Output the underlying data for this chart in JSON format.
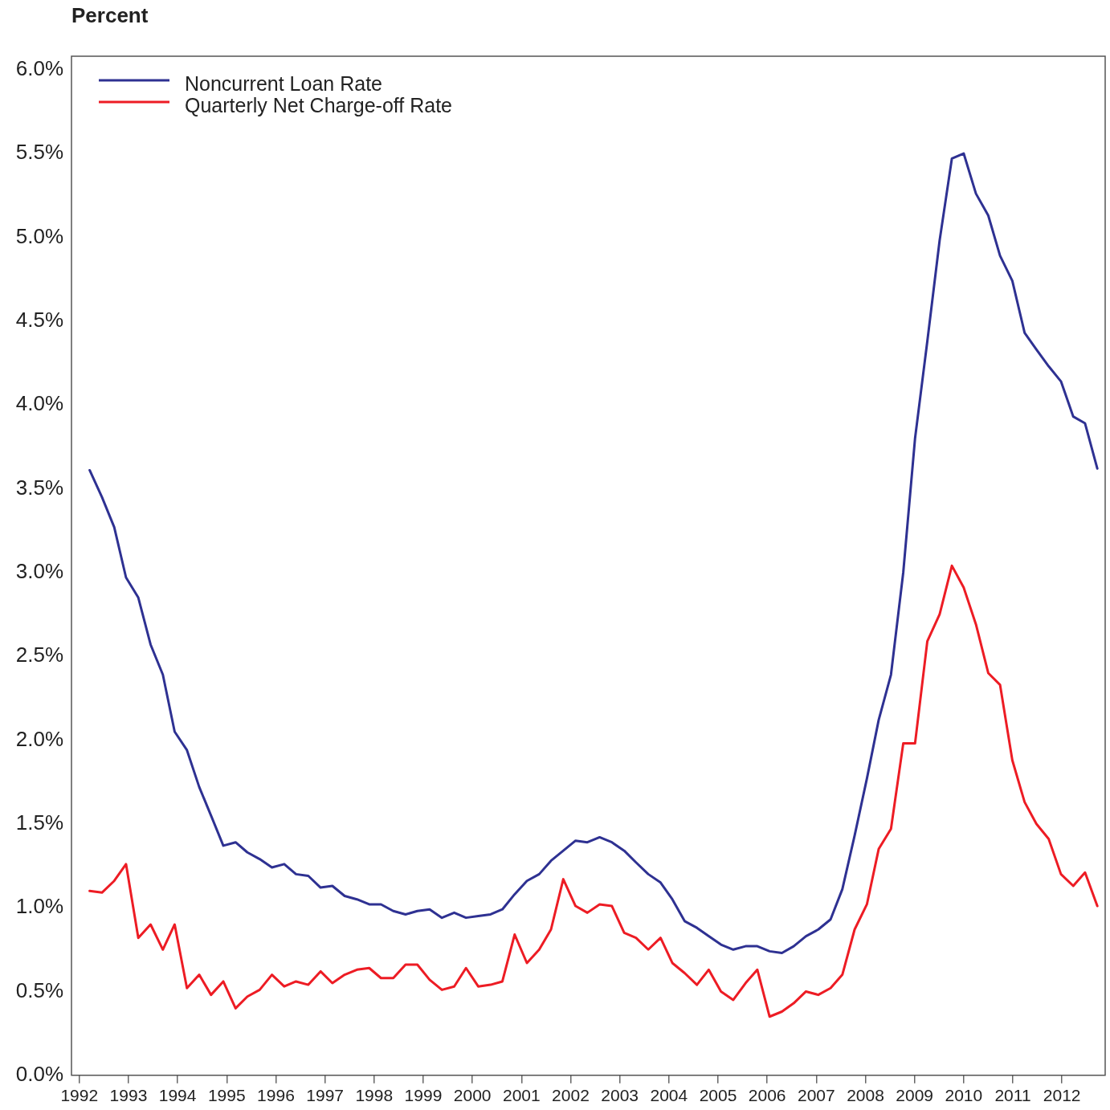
{
  "chart_data": {
    "type": "line",
    "ylabel": "Percent",
    "x": [
      1992.21,
      1992.46,
      1992.71,
      1992.95,
      1993.2,
      1993.45,
      1993.7,
      1993.94,
      1994.19,
      1994.44,
      1994.68,
      1994.93,
      1995.18,
      1995.42,
      1995.67,
      1995.92,
      1996.17,
      1996.41,
      1996.66,
      1996.91,
      1997.15,
      1997.4,
      1997.65,
      1997.9,
      1998.14,
      1998.39,
      1998.64,
      1998.88,
      1999.13,
      1999.38,
      1999.63,
      1999.87,
      2000.12,
      2000.37,
      2000.61,
      2000.86,
      2001.11,
      2001.36,
      2001.6,
      2001.85,
      2002.1,
      2002.34,
      2002.59,
      2002.84,
      2003.09,
      2003.33,
      2003.58,
      2003.83,
      2004.07,
      2004.32,
      2004.57,
      2004.81,
      2005.06,
      2005.31,
      2005.56,
      2005.8,
      2006.05,
      2006.3,
      2006.54,
      2006.79,
      2007.04,
      2007.29,
      2007.53,
      2007.78,
      2008.03,
      2008.27,
      2008.52,
      2008.77,
      2009.01,
      2009.26,
      2009.51,
      2009.76,
      2010.0,
      2010.25,
      2010.5,
      2010.74,
      2010.99,
      2011.24,
      2011.48,
      2011.73,
      2011.98,
      2012.23,
      2012.47,
      2012.72
    ],
    "series": [
      {
        "name": "Noncurrent Loan Rate",
        "color": "#2e3192",
        "values": [
          3.61,
          3.45,
          3.27,
          2.97,
          2.85,
          2.57,
          2.39,
          2.05,
          1.94,
          1.72,
          1.55,
          1.37,
          1.39,
          1.33,
          1.29,
          1.24,
          1.26,
          1.2,
          1.19,
          1.12,
          1.13,
          1.07,
          1.05,
          1.02,
          1.02,
          0.98,
          0.96,
          0.98,
          0.99,
          0.94,
          0.97,
          0.94,
          0.95,
          0.96,
          0.99,
          1.08,
          1.16,
          1.2,
          1.28,
          1.34,
          1.4,
          1.39,
          1.42,
          1.39,
          1.34,
          1.27,
          1.2,
          1.15,
          1.05,
          0.92,
          0.88,
          0.83,
          0.78,
          0.75,
          0.77,
          0.77,
          0.74,
          0.73,
          0.77,
          0.83,
          0.87,
          0.93,
          1.11,
          1.43,
          1.77,
          2.12,
          2.39,
          3.0,
          3.8,
          4.38,
          4.98,
          5.47,
          5.5,
          5.26,
          5.13,
          4.89,
          4.74,
          4.43,
          4.33,
          4.23,
          4.14,
          3.93,
          3.89,
          3.62
        ]
      },
      {
        "name": "Quarterly Net Charge-off Rate",
        "color": "#ed1c24",
        "values": [
          1.1,
          1.09,
          1.16,
          1.26,
          0.82,
          0.9,
          0.75,
          0.9,
          0.52,
          0.6,
          0.48,
          0.56,
          0.4,
          0.47,
          0.51,
          0.6,
          0.53,
          0.56,
          0.54,
          0.62,
          0.55,
          0.6,
          0.63,
          0.64,
          0.58,
          0.58,
          0.66,
          0.66,
          0.57,
          0.51,
          0.53,
          0.64,
          0.53,
          0.54,
          0.56,
          0.84,
          0.67,
          0.75,
          0.87,
          1.17,
          1.01,
          0.97,
          1.02,
          1.01,
          0.85,
          0.82,
          0.75,
          0.82,
          0.67,
          0.61,
          0.54,
          0.63,
          0.5,
          0.45,
          0.55,
          0.63,
          0.35,
          0.38,
          0.43,
          0.5,
          0.48,
          0.52,
          0.6,
          0.87,
          1.02,
          1.35,
          1.47,
          1.98,
          1.98,
          2.59,
          2.75,
          3.04,
          2.91,
          2.69,
          2.4,
          2.33,
          1.88,
          1.63,
          1.5,
          1.41,
          1.2,
          1.13,
          1.21,
          1.01
        ]
      }
    ],
    "xlim": [
      1991.84,
      2012.88
    ],
    "xticks": [
      1992,
      1993,
      1994,
      1995,
      1996,
      1997,
      1998,
      1999,
      2000,
      2001,
      2002,
      2003,
      2004,
      2005,
      2006,
      2007,
      2008,
      2009,
      2010,
      2011,
      2012
    ],
    "ylim": [
      0,
      6.08
    ],
    "yticks": [
      {
        "value": 0,
        "label": "0.0%"
      },
      {
        "value": 0.5,
        "label": "0.5%"
      },
      {
        "value": 1,
        "label": "1.0%"
      },
      {
        "value": 1.5,
        "label": "1.5%"
      },
      {
        "value": 2,
        "label": "2.0%"
      },
      {
        "value": 2.5,
        "label": "2.5%"
      },
      {
        "value": 3,
        "label": "3.0%"
      },
      {
        "value": 3.5,
        "label": "3.5%"
      },
      {
        "value": 4,
        "label": "4.0%"
      },
      {
        "value": 4.5,
        "label": "4.5%"
      },
      {
        "value": 5,
        "label": "5.0%"
      },
      {
        "value": 5.5,
        "label": "5.5%"
      },
      {
        "value": 6,
        "label": "6.0%"
      }
    ],
    "grid": false,
    "legend": "top left",
    "marker": "none",
    "line_style": "solid"
  }
}
